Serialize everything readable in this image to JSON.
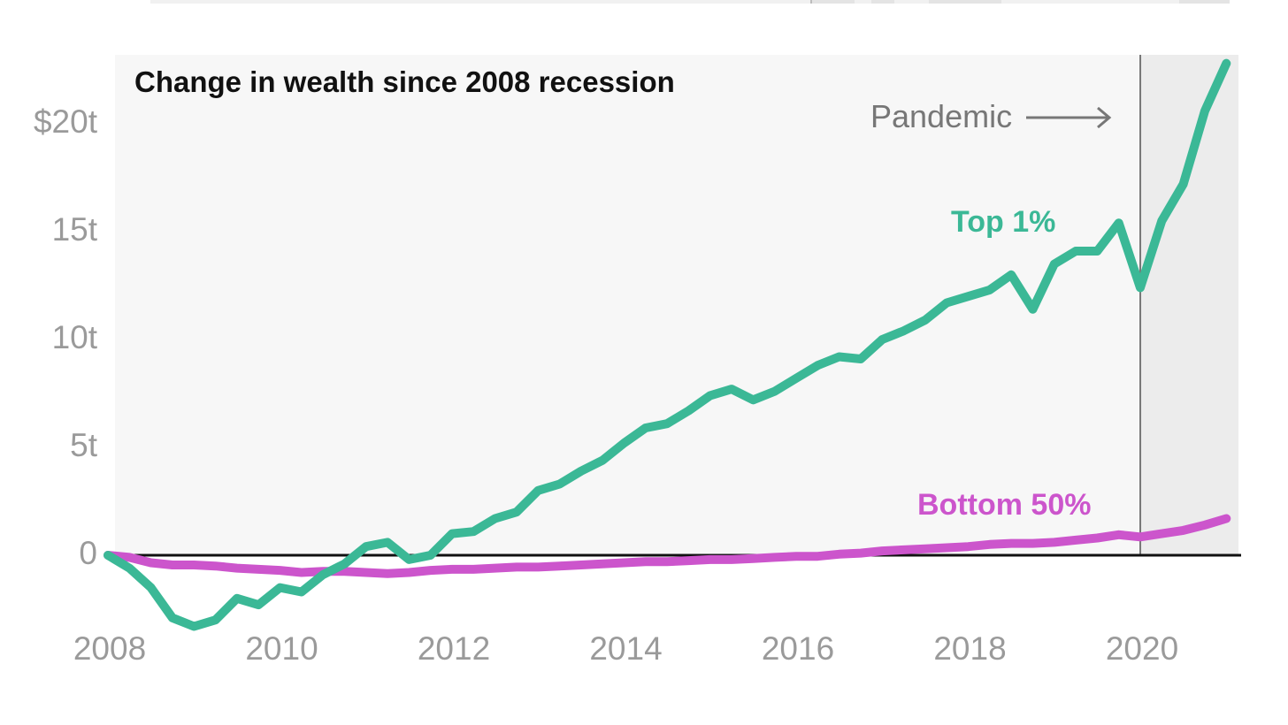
{
  "chart_data": {
    "type": "line",
    "title": "Change in wealth since 2008 recession",
    "xlabel": "",
    "ylabel": "",
    "xlim": [
      2008,
      2021.1
    ],
    "ylim": [
      -3.5,
      23.5
    ],
    "y_ticks": [
      {
        "value": 0,
        "label": "0"
      },
      {
        "value": 5,
        "label": "5t"
      },
      {
        "value": 10,
        "label": "10t"
      },
      {
        "value": 15,
        "label": "15t"
      },
      {
        "value": 20,
        "label": "$20t"
      }
    ],
    "x_ticks": [
      {
        "value": 2008,
        "label": "2008"
      },
      {
        "value": 2010,
        "label": "2010"
      },
      {
        "value": 2012,
        "label": "2012"
      },
      {
        "value": 2014,
        "label": "2014"
      },
      {
        "value": 2016,
        "label": "2016"
      },
      {
        "value": 2018,
        "label": "2018"
      },
      {
        "value": 2020,
        "label": "2020"
      }
    ],
    "shaded_region": {
      "label": "Pandemic",
      "start": 2020,
      "end": 2021.1
    },
    "series": [
      {
        "name": "Top 1%",
        "color": "#3bb896",
        "x": [
          2008.0,
          2008.25,
          2008.5,
          2008.75,
          2009.0,
          2009.25,
          2009.5,
          2009.75,
          2010.0,
          2010.25,
          2010.5,
          2010.75,
          2011.0,
          2011.25,
          2011.5,
          2011.75,
          2012.0,
          2012.25,
          2012.5,
          2012.75,
          2013.0,
          2013.25,
          2013.5,
          2013.75,
          2014.0,
          2014.25,
          2014.5,
          2014.75,
          2015.0,
          2015.25,
          2015.5,
          2015.75,
          2016.0,
          2016.25,
          2016.5,
          2016.75,
          2017.0,
          2017.25,
          2017.5,
          2017.75,
          2018.0,
          2018.25,
          2018.5,
          2018.75,
          2019.0,
          2019.25,
          2019.5,
          2019.75,
          2020.0,
          2020.25,
          2020.5,
          2020.75,
          2021.0
        ],
        "values": [
          0.0,
          -0.6,
          -1.5,
          -2.9,
          -3.3,
          -3.0,
          -2.0,
          -2.3,
          -1.5,
          -1.7,
          -0.9,
          -0.4,
          0.4,
          0.6,
          -0.2,
          0.0,
          1.0,
          1.1,
          1.7,
          2.0,
          3.0,
          3.3,
          3.9,
          4.4,
          5.2,
          5.9,
          6.1,
          6.7,
          7.4,
          7.7,
          7.2,
          7.6,
          8.2,
          8.8,
          9.2,
          9.1,
          10.0,
          10.4,
          10.9,
          11.7,
          12.0,
          12.3,
          13.0,
          11.4,
          13.5,
          14.1,
          14.1,
          15.4,
          12.4,
          15.5,
          17.2,
          20.6,
          22.8
        ]
      },
      {
        "name": "Bottom 50%",
        "color": "#cc55cc",
        "x": [
          2008.0,
          2008.25,
          2008.5,
          2008.75,
          2009.0,
          2009.25,
          2009.5,
          2009.75,
          2010.0,
          2010.25,
          2010.5,
          2010.75,
          2011.0,
          2011.25,
          2011.5,
          2011.75,
          2012.0,
          2012.25,
          2012.5,
          2012.75,
          2013.0,
          2013.25,
          2013.5,
          2013.75,
          2014.0,
          2014.25,
          2014.5,
          2014.75,
          2015.0,
          2015.25,
          2015.5,
          2015.75,
          2016.0,
          2016.25,
          2016.5,
          2016.75,
          2017.0,
          2017.25,
          2017.5,
          2017.75,
          2018.0,
          2018.25,
          2018.5,
          2018.75,
          2019.0,
          2019.25,
          2019.5,
          2019.75,
          2020.0,
          2020.25,
          2020.5,
          2020.75,
          2021.0
        ],
        "values": [
          0.0,
          -0.1,
          -0.35,
          -0.45,
          -0.45,
          -0.5,
          -0.6,
          -0.65,
          -0.7,
          -0.8,
          -0.75,
          -0.75,
          -0.8,
          -0.85,
          -0.8,
          -0.7,
          -0.65,
          -0.65,
          -0.6,
          -0.55,
          -0.55,
          -0.5,
          -0.45,
          -0.4,
          -0.35,
          -0.3,
          -0.3,
          -0.25,
          -0.2,
          -0.2,
          -0.15,
          -0.1,
          -0.05,
          -0.05,
          0.05,
          0.1,
          0.2,
          0.25,
          0.3,
          0.35,
          0.4,
          0.5,
          0.55,
          0.55,
          0.6,
          0.7,
          0.8,
          0.95,
          0.85,
          1.0,
          1.15,
          1.4,
          1.7
        ]
      }
    ],
    "annotations": {
      "pandemic": "Pandemic",
      "top_label": "Top 1%",
      "bottom_label": "Bottom 50%"
    }
  }
}
